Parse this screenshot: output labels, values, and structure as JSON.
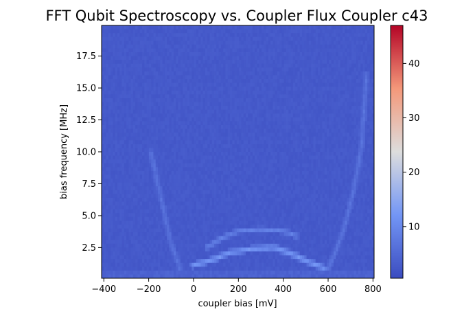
{
  "chart_data": {
    "type": "heatmap",
    "title": "FFT Qubit Spectroscopy vs. Coupler Flux  Coupler c43",
    "xlabel": "coupler bias [mV]",
    "ylabel": "bias frequency [MHz]",
    "xlim": [
      -410,
      805
    ],
    "ylim": [
      0.1,
      19.9
    ],
    "xticks": [
      -400,
      -200,
      0,
      200,
      400,
      600,
      800
    ],
    "xtick_labels": [
      "−400",
      "−200",
      "0",
      "200",
      "400",
      "600",
      "800"
    ],
    "yticks": [
      2.5,
      5.0,
      7.5,
      10.0,
      12.5,
      15.0,
      17.5
    ],
    "ytick_labels": [
      "2.5",
      "5.0",
      "7.5",
      "10.0",
      "12.5",
      "15.0",
      "17.5"
    ],
    "colormap": "coolwarm",
    "colorbar": {
      "range": [
        0.5,
        47
      ],
      "ticks": [
        10,
        20,
        30,
        40
      ],
      "tick_labels": [
        "10",
        "20",
        "30",
        "40"
      ]
    },
    "grid": false,
    "background_level": 2,
    "features": [
      {
        "name": "left-branch",
        "points": [
          [
            -190,
            10.0
          ],
          [
            -160,
            7.5
          ],
          [
            -130,
            5.2
          ],
          [
            -105,
            3.2
          ],
          [
            -80,
            1.8
          ],
          [
            -60,
            0.8
          ]
        ],
        "intensity": 6
      },
      {
        "name": "right-branch",
        "points": [
          [
            600,
            0.8
          ],
          [
            640,
            2.5
          ],
          [
            680,
            4.5
          ],
          [
            720,
            7.5
          ],
          [
            750,
            10.5
          ],
          [
            770,
            16.0
          ]
        ],
        "intensity": 6
      },
      {
        "name": "lower-band",
        "points": [
          [
            0,
            1.1
          ],
          [
            80,
            1.5
          ],
          [
            160,
            2.1
          ],
          [
            260,
            2.4
          ],
          [
            360,
            2.5
          ],
          [
            440,
            2.0
          ],
          [
            520,
            1.3
          ],
          [
            580,
            0.9
          ]
        ],
        "intensity": 12
      },
      {
        "name": "upper-band",
        "points": [
          [
            60,
            2.5
          ],
          [
            120,
            3.2
          ],
          [
            200,
            3.8
          ],
          [
            300,
            3.9
          ],
          [
            400,
            3.8
          ],
          [
            460,
            3.4
          ]
        ],
        "intensity": 8
      },
      {
        "name": "baseline-row",
        "points": [
          [
            -400,
            0.4
          ],
          [
            800,
            0.4
          ]
        ],
        "intensity": 5
      }
    ]
  }
}
